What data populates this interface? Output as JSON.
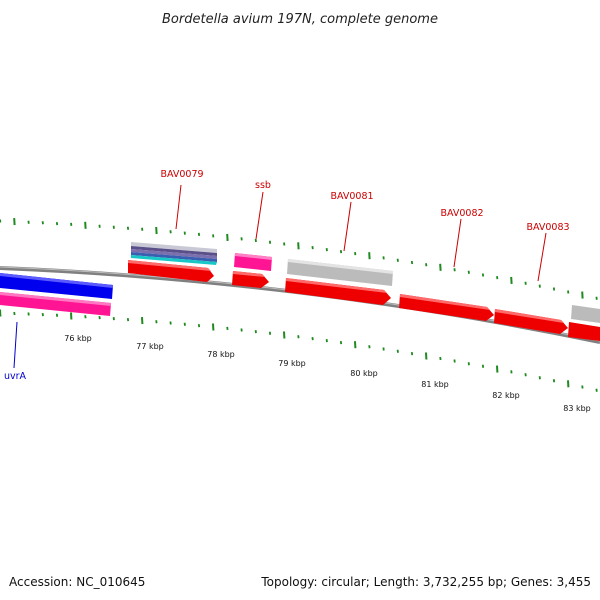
{
  "title": "Bordetella avium 197N, complete genome",
  "footer": {
    "accession": "Accession: NC_010645",
    "summary": "Topology: circular; Length: 3,732,255 bp; Genes: 3,455"
  },
  "colors": {
    "gene_label_red": "#cc0000",
    "gene_label_blue": "#0000cc",
    "cds_red": "#ee0000",
    "cds_pink": "#ff1493",
    "cds_blue": "#0000ee",
    "cds_gray": "#bbbbbb",
    "tick_green": "#1f8a1f",
    "backbone": "#808080"
  },
  "kbp_labels": [
    {
      "text": "76 kbp",
      "pos": 76
    },
    {
      "text": "77 kbp",
      "pos": 77
    },
    {
      "text": "78 kbp",
      "pos": 78
    },
    {
      "text": "79 kbp",
      "pos": 79
    },
    {
      "text": "80 kbp",
      "pos": 80
    },
    {
      "text": "81 kbp",
      "pos": 81
    },
    {
      "text": "82 kbp",
      "pos": 82
    },
    {
      "text": "83 kbp",
      "pos": 83
    }
  ],
  "gene_labels": [
    {
      "text": "BAV0079",
      "color": "red"
    },
    {
      "text": "ssb",
      "color": "red"
    },
    {
      "text": "BAV0081",
      "color": "red"
    },
    {
      "text": "BAV0082",
      "color": "red"
    },
    {
      "text": "BAV0083",
      "color": "red"
    },
    {
      "text": "uvrA",
      "color": "blue"
    }
  ]
}
